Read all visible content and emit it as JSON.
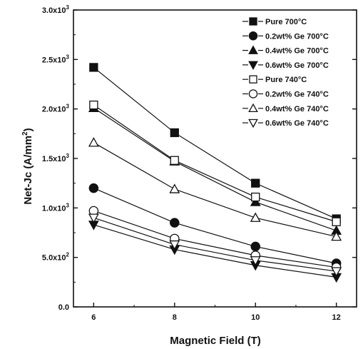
{
  "chart_data": {
    "type": "line",
    "title": "",
    "xlabel": "Magnetic Field (T)",
    "ylabel": "Net-Jc (A/mm²)",
    "x": [
      6,
      8,
      10,
      12
    ],
    "xlim": [
      5.5,
      12.5
    ],
    "ylim": [
      0,
      3000
    ],
    "xticks": [
      6,
      8,
      10,
      12
    ],
    "xtick_labels": [
      "6",
      "8",
      "10",
      "12"
    ],
    "yticks": [
      0,
      500,
      1000,
      1500,
      2000,
      2500,
      3000
    ],
    "ytick_labels": [
      {
        "mant": "0.0",
        "exp": ""
      },
      {
        "mant": "5.0x10",
        "exp": "2"
      },
      {
        "mant": "1.0x10",
        "exp": "3"
      },
      {
        "mant": "1.5x10",
        "exp": "3"
      },
      {
        "mant": "2.0x10",
        "exp": "3"
      },
      {
        "mant": "2.5x10",
        "exp": "3"
      },
      {
        "mant": "3.0x10",
        "exp": "3"
      }
    ],
    "grid": false,
    "legend_position": "top-right",
    "series": [
      {
        "name": "Pure 700°C",
        "marker": "square",
        "fill": "filled",
        "values": [
          2420,
          1760,
          1250,
          890
        ]
      },
      {
        "name": "0.2wt% Ge 700°C",
        "marker": "circle",
        "fill": "filled",
        "values": [
          1200,
          850,
          610,
          440
        ]
      },
      {
        "name": "0.4wt% Ge 700°C",
        "marker": "triangle-up",
        "fill": "filled",
        "values": [
          2010,
          1470,
          1060,
          770
        ]
      },
      {
        "name": "0.6wt% Ge 700°C",
        "marker": "triangle-down",
        "fill": "filled",
        "values": [
          830,
          580,
          420,
          300
        ]
      },
      {
        "name": "Pure 740°C",
        "marker": "square",
        "fill": "open",
        "values": [
          2040,
          1480,
          1110,
          860
        ]
      },
      {
        "name": "0.2wt% Ge 740°C",
        "marker": "circle",
        "fill": "open",
        "values": [
          970,
          690,
          520,
          400
        ]
      },
      {
        "name": "0.4wt% Ge 740°C",
        "marker": "triangle-up",
        "fill": "open",
        "values": [
          1660,
          1190,
          900,
          710
        ]
      },
      {
        "name": "0.6wt% Ge 740°C",
        "marker": "triangle-down",
        "fill": "open",
        "values": [
          900,
          630,
          470,
          360
        ]
      }
    ]
  }
}
